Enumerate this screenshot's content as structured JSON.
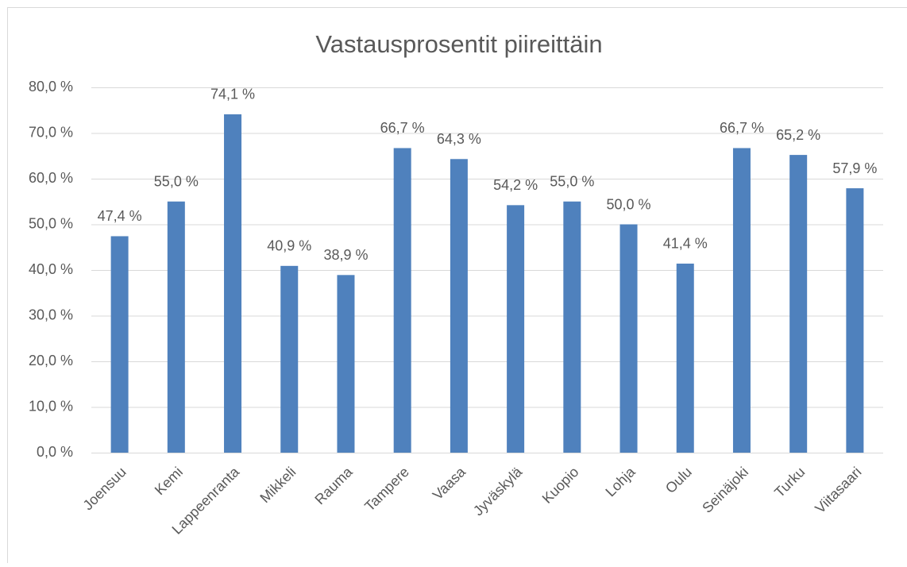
{
  "chart_data": {
    "type": "bar",
    "title": "Vastausprosentit piireittäin",
    "categories": [
      "Joensuu",
      "Kemi",
      "Lappeenranta",
      "Mikkeli",
      "Rauma",
      "Tampere",
      "Vaasa",
      "Jyväskylä",
      "Kuopio",
      "Lohja",
      "Oulu",
      "Seinäjoki",
      "Turku",
      "Viitasaari"
    ],
    "values": [
      47.4,
      55.0,
      74.1,
      40.9,
      38.9,
      66.7,
      64.3,
      54.2,
      55.0,
      50.0,
      41.4,
      66.7,
      65.2,
      57.9
    ],
    "value_labels": [
      "47,4 %",
      "55,0 %",
      "74,1 %",
      "40,9 %",
      "38,9 %",
      "66,7 %",
      "64,3 %",
      "54,2 %",
      "55,0 %",
      "50,0 %",
      "41,4 %",
      "66,7 %",
      "65,2 %",
      "57,9 %"
    ],
    "color": "#4f81bd",
    "ylim": [
      0,
      80
    ],
    "yticks": [
      {
        "value": 0,
        "label": "0,0 %"
      },
      {
        "value": 10,
        "label": "10,0 %"
      },
      {
        "value": 20,
        "label": "20,0 %"
      },
      {
        "value": 30,
        "label": "30,0 %"
      },
      {
        "value": 40,
        "label": "40,0 %"
      },
      {
        "value": 50,
        "label": "50,0 %"
      },
      {
        "value": 60,
        "label": "60,0 %"
      },
      {
        "value": 70,
        "label": "70,0 %"
      },
      {
        "value": 80,
        "label": "80,0 %"
      }
    ],
    "grid": true
  }
}
